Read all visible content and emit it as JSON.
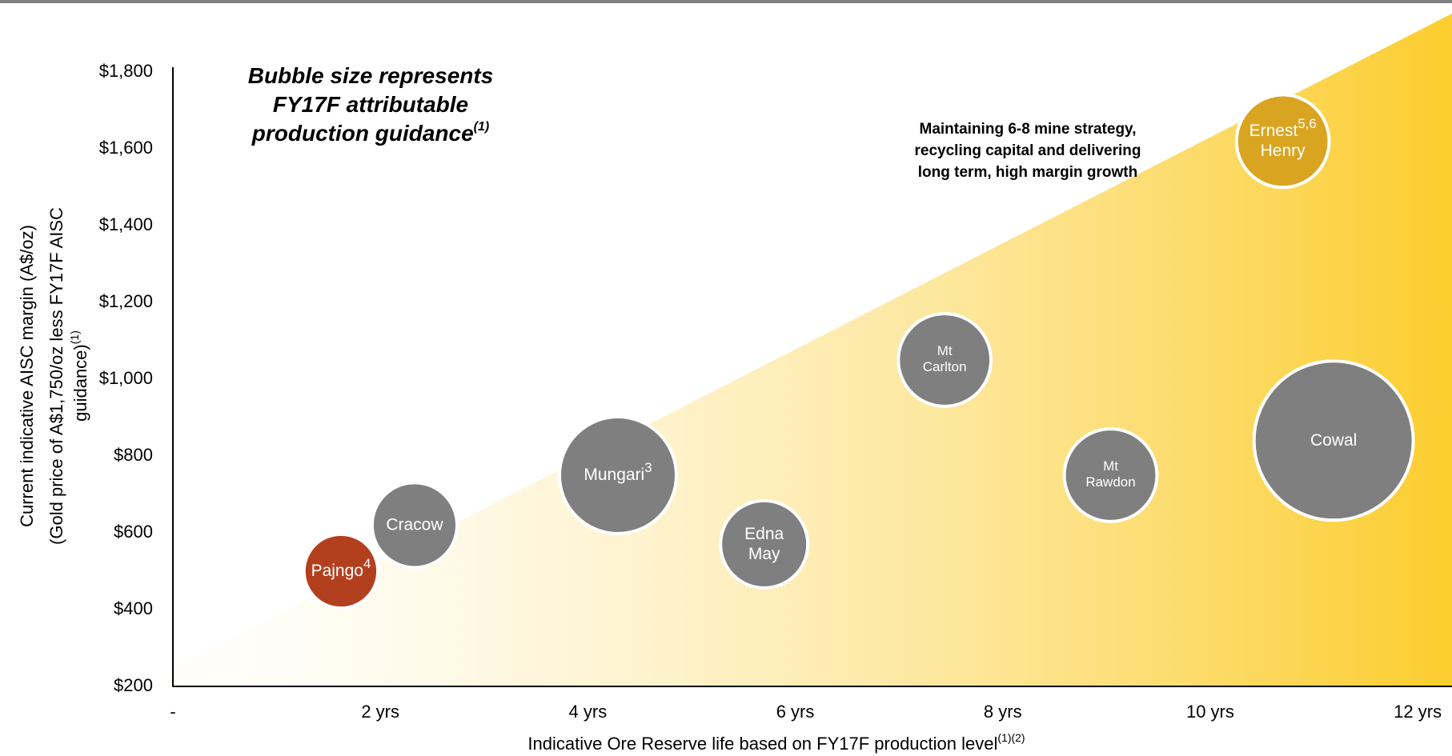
{
  "chart_data": {
    "type": "bubble",
    "bubble_note": {
      "lines": [
        "Bubble size represents",
        "FY17F attributable",
        "production guidance"
      ],
      "sup": "(1)"
    },
    "strategy_note": [
      "Maintaining 6-8 mine strategy,",
      "recycling capital and delivering",
      "long term, high margin growth"
    ],
    "y_label": {
      "lines": [
        "Current indicative AISC margin (A$/oz)",
        "(Gold price of A$1,750/oz less FY17F AISC",
        "guidance)"
      ],
      "sup": "(1)"
    },
    "x_label": {
      "text": "Indicative Ore Reserve life based on FY17F production level",
      "sup": "(1)(2)"
    },
    "labels": [
      [
        "Pajngo"
      ],
      [
        "Cracow"
      ],
      [
        "Mungari"
      ],
      [
        "Edna",
        "May"
      ],
      [
        "Mt",
        "Carlton"
      ],
      [
        "Mt",
        "Rawdon"
      ],
      [
        "Cowal"
      ],
      [
        "Ernest",
        "Henry"
      ]
    ],
    "notes": [
      "4",
      null,
      "3",
      null,
      null,
      null,
      null,
      "5,6"
    ],
    "x": [
      1.62,
      2.33,
      4.29,
      5.7,
      7.44,
      9.04,
      11.19,
      10.7
    ],
    "y": [
      500,
      620,
      750,
      570,
      1050,
      750,
      840,
      1620
    ],
    "sizes": [
      56,
      74,
      140,
      78,
      88,
      88,
      260,
      88
    ],
    "colors": [
      "#b2401f",
      "#7f7f7f",
      "#7f7f7f",
      "#7f7f7f",
      "#7f7f7f",
      "#7f7f7f",
      "#7f7f7f",
      "#d9a521"
    ],
    "xlim": [
      0,
      12.3
    ],
    "ylim": [
      200,
      1800
    ],
    "xticks": [
      {
        "value": 0,
        "label": "-"
      },
      {
        "value": 2,
        "label": "2 yrs"
      },
      {
        "value": 4,
        "label": "4 yrs"
      },
      {
        "value": 6,
        "label": "6 yrs"
      },
      {
        "value": 8,
        "label": "8 yrs"
      },
      {
        "value": 10,
        "label": "10 yrs"
      },
      {
        "value": 12,
        "label": "12 yrs"
      }
    ],
    "yticks": [
      {
        "value": 200,
        "label": "$200"
      },
      {
        "value": 400,
        "label": "$400"
      },
      {
        "value": 600,
        "label": "$600"
      },
      {
        "value": 800,
        "label": "$800"
      },
      {
        "value": 1000,
        "label": "$1,000"
      },
      {
        "value": 1200,
        "label": "$1,200"
      },
      {
        "value": 1400,
        "label": "$1,400"
      },
      {
        "value": 1600,
        "label": "$1,600"
      },
      {
        "value": 1800,
        "label": "$1,800"
      }
    ]
  }
}
